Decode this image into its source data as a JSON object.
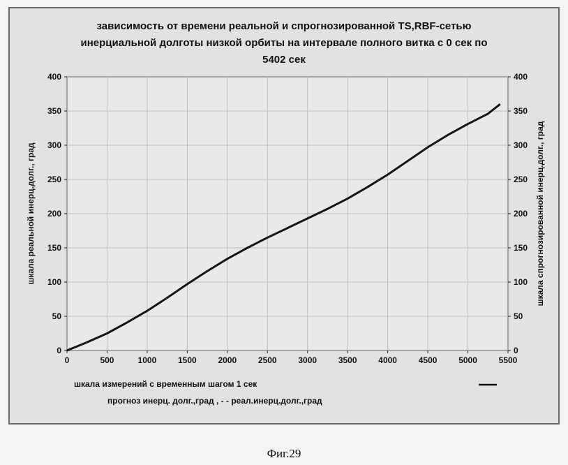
{
  "chart_data": {
    "type": "line",
    "title_lines": [
      "зависимость от времени реальной и спрогнозированной TS,RBF-сетью",
      "инерциальной долготы низкой орбиты на интервале полного витка с 0 сек по",
      "5402 сек"
    ],
    "xlabel": "шкала измерений с временным шагом 1 сек",
    "ylabel_left": "шкала реальной инерц.долг., град",
    "ylabel_right": "шкала спрогнозированной инерц.долг., град",
    "xlim": [
      0,
      5500
    ],
    "ylim": [
      0,
      400
    ],
    "x_ticks": [
      "0",
      "500",
      "1000",
      "1500",
      "2000",
      "2500",
      "3000",
      "3500",
      "4000",
      "4500",
      "5000",
      "5500"
    ],
    "y_ticks": [
      "0",
      "50",
      "100",
      "150",
      "200",
      "250",
      "300",
      "350",
      "400"
    ],
    "grid": true,
    "legend_placement": "bottom",
    "legend_text": "прогноз инерц. долг.,град ,  - -  реал.инерц.долг.,град",
    "series": [
      {
        "x": [
          0,
          250,
          500,
          750,
          1000,
          1250,
          1500,
          1750,
          2000,
          2250,
          2500,
          2750,
          3000,
          3250,
          3500,
          3750,
          4000,
          4250,
          4500,
          4750,
          5000,
          5250,
          5402
        ],
        "values": [
          0,
          12,
          25,
          41,
          58,
          77,
          97,
          116,
          134,
          150,
          165,
          179,
          193,
          207,
          222,
          239,
          257,
          277,
          297,
          315,
          331,
          346,
          360
        ]
      }
    ]
  },
  "colors": {
    "line": "#151515",
    "grid": "#bdbdbd",
    "frame_bg": "#e2e2e2",
    "plot_bg": "#e9e9e9"
  },
  "caption": "Фиг.29"
}
